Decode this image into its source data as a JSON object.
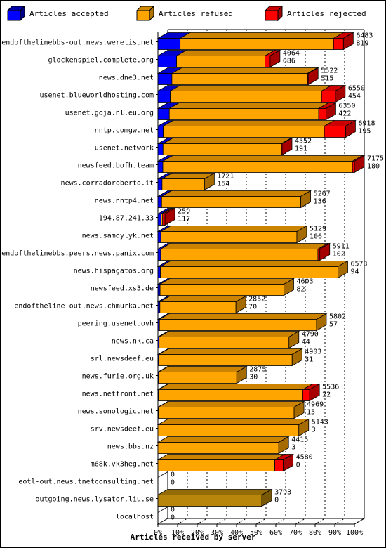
{
  "legend": {
    "accepted": "Articles accepted",
    "refused": "Articles refused",
    "rejected": "Articles rejected"
  },
  "colors": {
    "accepted": "#0000ff",
    "refused": "#ffa500",
    "rejected": "#ff0000",
    "zero_refused": "#b8860b"
  },
  "chart_data": {
    "type": "bar",
    "orientation": "horizontal",
    "stacked": true,
    "xlabel": "Articles received by server",
    "x_ticks": [
      "0%",
      "10%",
      "20%",
      "30%",
      "40%",
      "50%",
      "60%",
      "70%",
      "80%",
      "90%",
      "100%"
    ],
    "xlim": [
      0,
      100
    ],
    "series_names": [
      "Articles accepted",
      "Articles refused",
      "Articles rejected"
    ],
    "categories": [
      {
        "server": "endofthelinebbs-out.news.weretis.net",
        "total": "6483",
        "accepted": "819",
        "acc_pct": 11.3,
        "ref_pct": 78.1,
        "rej_pct": 5.0
      },
      {
        "server": "glockenspiel.complete.org",
        "total": "4064",
        "accepted": "686",
        "acc_pct": 9.5,
        "ref_pct": 45.0,
        "rej_pct": 2.6
      },
      {
        "server": "news.dne3.net",
        "total": "5522",
        "accepted": "515",
        "acc_pct": 7.1,
        "ref_pct": 69.0,
        "rej_pct": 0.4
      },
      {
        "server": "usenet.blueworldhosting.com",
        "total": "6550",
        "accepted": "454",
        "acc_pct": 6.3,
        "ref_pct": 77.0,
        "rej_pct": 7.0
      },
      {
        "server": "usenet.goja.nl.eu.org",
        "total": "6350",
        "accepted": "422",
        "acc_pct": 5.8,
        "ref_pct": 76.0,
        "rej_pct": 3.7
      },
      {
        "server": "nntp.comgw.net",
        "total": "6918",
        "accepted": "195",
        "acc_pct": 2.7,
        "ref_pct": 82.0,
        "rej_pct": 10.8
      },
      {
        "server": "usenet.network",
        "total": "4552",
        "accepted": "191",
        "acc_pct": 2.6,
        "ref_pct": 60.2,
        "rej_pct": 0.4
      },
      {
        "server": "newsfeed.bofh.team",
        "total": "7175",
        "accepted": "180",
        "acc_pct": 2.5,
        "ref_pct": 96.5,
        "rej_pct": 1.0
      },
      {
        "server": "news.corradoroberto.it",
        "total": "1721",
        "accepted": "154",
        "acc_pct": 2.1,
        "ref_pct": 21.6,
        "rej_pct": 0.0
      },
      {
        "server": "news.nntp4.net",
        "total": "5267",
        "accepted": "136",
        "acc_pct": 1.9,
        "ref_pct": 70.8,
        "rej_pct": 0.0
      },
      {
        "server": "194.87.241.33",
        "total": "259",
        "accepted": "117",
        "acc_pct": 1.6,
        "ref_pct": 0.8,
        "rej_pct": 1.2
      },
      {
        "server": "news.samoylyk.net",
        "total": "5129",
        "accepted": "106",
        "acc_pct": 1.5,
        "ref_pct": 69.2,
        "rej_pct": 0.0
      },
      {
        "server": "endofthelinebbs.peers.news.panix.com",
        "total": "5911",
        "accepted": "102",
        "acc_pct": 1.4,
        "ref_pct": 80.0,
        "rej_pct": 1.0
      },
      {
        "server": "news.hispagatos.org",
        "total": "6573",
        "accepted": "94",
        "acc_pct": 1.3,
        "ref_pct": 90.3,
        "rej_pct": 0.0
      },
      {
        "server": "newsfeed.xs3.de",
        "total": "4603",
        "accepted": "82",
        "acc_pct": 1.1,
        "ref_pct": 63.0,
        "rej_pct": 0.0
      },
      {
        "server": "endoftheline-out.news.chmurka.net",
        "total": "2852",
        "accepted": "70",
        "acc_pct": 1.0,
        "ref_pct": 38.7,
        "rej_pct": 0.0
      },
      {
        "server": "peering.usenet.ovh",
        "total": "5802",
        "accepted": "57",
        "acc_pct": 0.8,
        "ref_pct": 79.9,
        "rej_pct": 0.0
      },
      {
        "server": "news.nk.ca",
        "total": "4790",
        "accepted": "44",
        "acc_pct": 0.6,
        "ref_pct": 66.1,
        "rej_pct": 0.0
      },
      {
        "server": "srl.newsdeef.eu",
        "total": "4903",
        "accepted": "31",
        "acc_pct": 0.4,
        "ref_pct": 67.9,
        "rej_pct": 0.0
      },
      {
        "server": "news.furie.org.uk",
        "total": "2875",
        "accepted": "30",
        "acc_pct": 0.4,
        "ref_pct": 39.7,
        "rej_pct": 0.0
      },
      {
        "server": "news.netfront.net",
        "total": "5536",
        "accepted": "22",
        "acc_pct": 0.3,
        "ref_pct": 73.4,
        "rej_pct": 3.5
      },
      {
        "server": "news.sonologic.net",
        "total": "4969",
        "accepted": "15",
        "acc_pct": 0.2,
        "ref_pct": 69.1,
        "rej_pct": 0.0
      },
      {
        "server": "srv.newsdeef.eu",
        "total": "5143",
        "accepted": "3",
        "acc_pct": 0.0,
        "ref_pct": 71.7,
        "rej_pct": 0.0
      },
      {
        "server": "news.bbs.nz",
        "total": "4415",
        "accepted": "3",
        "acc_pct": 0.0,
        "ref_pct": 61.5,
        "rej_pct": 0.0
      },
      {
        "server": "m68k.vk3heg.net",
        "total": "4580",
        "accepted": "0",
        "acc_pct": 0.0,
        "ref_pct": 59.5,
        "rej_pct": 4.3
      },
      {
        "server": "eotl-out.news.tnetconsulting.net",
        "total": "0",
        "accepted": "0",
        "acc_pct": 0.0,
        "ref_pct": 0.0,
        "rej_pct": 0.0
      },
      {
        "server": "outgoing.news.lysator.liu.se",
        "total": "3793",
        "accepted": "0",
        "acc_pct": 0.0,
        "ref_pct": 52.9,
        "rej_pct": 0.0
      },
      {
        "server": "localhost",
        "total": "0",
        "accepted": "0",
        "acc_pct": 0.0,
        "ref_pct": 0.0,
        "rej_pct": 0.0
      }
    ]
  }
}
